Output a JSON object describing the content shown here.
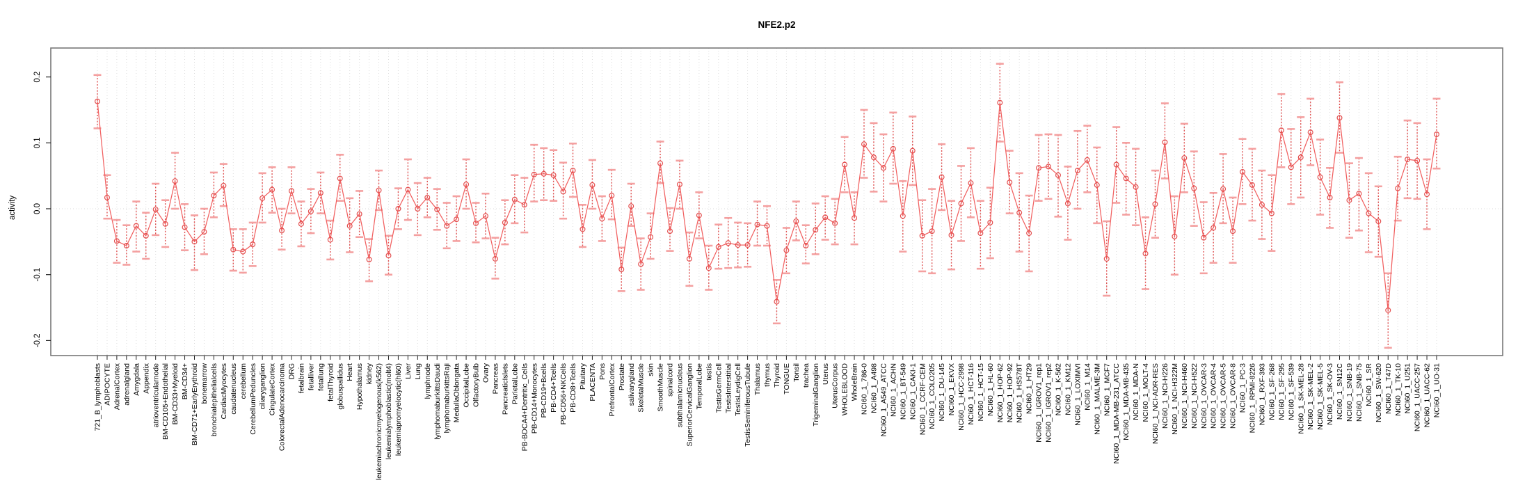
{
  "page": {
    "background": "#ffffff"
  },
  "chart_data": {
    "type": "line",
    "title": "NFE2.p2",
    "ylabel": "activity",
    "xlabel": "",
    "ylim": [
      -0.225,
      0.245
    ],
    "ytick_labels": [
      "0.2",
      "0.1",
      "0.0",
      "-0.1",
      "-0.2"
    ],
    "legend": "none",
    "grid": "vertical dotted gridline per category; dotted horizontal line at y=0",
    "marker": "open-circle",
    "error_bars": true,
    "colors": {
      "series_line": "#f15f5f",
      "point_stroke": "#e34e4e",
      "errorbar_cap": "#f4a0a0",
      "errorbar_stem": "#e05252",
      "gridline": "#dcdcdc",
      "zero_line": "#d8d8d8",
      "box": "#777777",
      "tick": "#222222",
      "text": "#000000"
    },
    "categories": [
      "721_B_lymphoblasts",
      "ADIPOCYTE",
      "AdrenalCortex",
      "adrenalgland",
      "Amygdala",
      "Appendix",
      "atrioventricularnode",
      "BM-CD105+Endothelial",
      "BM-CD33+Myeloid",
      "BM-CD34+",
      "BM-CD71+EarlyErythroid",
      "bonemarrow",
      "bronchialepithelialcells",
      "CardiacMyocytes",
      "caudatenucleus",
      "cerebellum",
      "CerebellumPeduncles",
      "ciliaryganglion",
      "CingulateCortex",
      "ColorectalAdenocarcinoma",
      "DRG",
      "fetalbrain",
      "fetalliver",
      "fetallung",
      "fetalThyroid",
      "globuspallidus",
      "Heart",
      "Hypothalamus",
      "kidney",
      "leukemiachronicmyelogenous(k562)",
      "leukemialymphoblastic(molt4)",
      "leukemiapromyelocytic(hl60)",
      "Liver",
      "Lung",
      "lymphnode",
      "lymphomaburkittsDaudi",
      "lymphomaburkittsRaji",
      "MedullaOblongata",
      "OccipitalLobe",
      "OlfactoryBulb",
      "Ovary",
      "Pancreas",
      "PancreaticIslets",
      "ParietalLobe",
      "PB-BDCA4+Dentritic_Cells",
      "PB-CD14+Monocytes",
      "PB-CD19+Bcells",
      "PB-CD4+Tcells",
      "PB-CD56+NKCells",
      "PB-CD8+Tcells",
      "Pituitary",
      "PLACENTA",
      "Pons",
      "PrefrontalCortex",
      "Prostate",
      "salivarygland",
      "SkeletalMuscle",
      "skin",
      "SmoothMuscle",
      "spinalcord",
      "subthalamicnucleus",
      "SuperiorCervicalGanglion",
      "TemporalLobe",
      "testis",
      "TestisGermCell",
      "TestisInterstitial",
      "TestisLeydigCell",
      "TestisSeminiferousTubule",
      "Thalamus",
      "thymus",
      "Thyroid",
      "TONGUE",
      "Tonsil",
      "trachea",
      "TrigeminalGanglion",
      "Uterus",
      "UterusCorpus",
      "WHOLEBLOOD",
      "WholeBrain",
      "NCI60_1_786-0",
      "NCI60_1_A498",
      "NCI60_1_A549_ATCC",
      "NCI60_1_ACHN",
      "NCI60_1_BT-549",
      "NCI60_1_CAKI-1",
      "NCI60_1_CCRF-CEM",
      "NCI60_1_COLO205",
      "NCI60_1_DU-145",
      "NCI60_1_EKVX",
      "NCI60_1_HCC-2998",
      "NCI60_1_HCT-116",
      "NCI60_1_HCT-15",
      "NCI60_1_HL-60",
      "NCI60_1_HOP-62",
      "NCI60_1_HOP-92",
      "NCI60_1_HS578T",
      "NCI60_1_HT29",
      "NCI60_1_IGROV1_rep1",
      "NCI60_1_IGROV1_rep2",
      "NCI60_1_K-562",
      "NCI60_1_KM12",
      "NCI60_1_LOXIMVI",
      "NCI60_1_M14",
      "NCI60_1_MALME-3M",
      "NCI60_1_MCF7",
      "NCI60_1_MDA-MB-231_ATCC",
      "NCI60_1_MDA-MB-435",
      "NCI60_1_MDA-N",
      "NCI60_1_MOLT-4",
      "NCI60_1_NCI-ADR-RES",
      "NCI60_1_NCI-H226",
      "NCI60_1_NCI-H322M",
      "NCI60_1_NCI-H460",
      "NCI60_1_NCI-H522",
      "NCI60_1_OVCAR-3",
      "NCI60_1_OVCAR-4",
      "NCI60_1_OVCAR-5",
      "NCI60_1_OVCAR-8",
      "NCI60_1_PC-3",
      "NCI60_1_RPMI-8226",
      "NCI60_1_RXF-393",
      "NCI60_1_SF-268",
      "NCI60_1_SF-295",
      "NCI60_1_SF-539",
      "NCI60_1_SK-MEL-28",
      "NCI60_1_SK-MEL-2",
      "NCI60_1_SK-MEL-5",
      "NCI60_1_SK-OV-3",
      "NCI60_1_SN12C",
      "NCI60_1_SNB-19",
      "NCI60_1_SNB-75",
      "NCI60_1_SR",
      "NCI60_1_SW-620",
      "NCI60_1_T47D",
      "NCI60_1_TK-10",
      "NCI60_1_U251",
      "NCI60_1_UACC-257",
      "NCI60_1_UACC-62",
      "NCI60_1_UO-31"
    ],
    "values": [
      0.163,
      0.017,
      -0.049,
      -0.056,
      -0.026,
      -0.041,
      -0.001,
      -0.023,
      0.042,
      -0.028,
      -0.05,
      -0.035,
      0.02,
      0.035,
      -0.062,
      -0.065,
      -0.054,
      0.016,
      0.029,
      -0.033,
      0.027,
      -0.023,
      -0.004,
      0.024,
      -0.047,
      0.046,
      -0.026,
      -0.008,
      -0.077,
      0.028,
      -0.071,
      0.0,
      0.029,
      0.0,
      0.017,
      -0.001,
      -0.026,
      -0.016,
      0.037,
      -0.022,
      -0.011,
      -0.076,
      -0.021,
      0.014,
      0.006,
      0.052,
      0.053,
      0.051,
      0.026,
      0.058,
      -0.031,
      0.036,
      -0.015,
      0.02,
      -0.092,
      0.004,
      -0.084,
      -0.043,
      0.069,
      -0.034,
      0.037,
      -0.076,
      -0.01,
      -0.09,
      -0.058,
      -0.052,
      -0.055,
      -0.055,
      -0.024,
      -0.026,
      -0.141,
      -0.063,
      -0.019,
      -0.056,
      -0.032,
      -0.013,
      -0.022,
      0.067,
      -0.014,
      0.098,
      0.078,
      0.062,
      0.091,
      -0.011,
      0.088,
      -0.041,
      -0.034,
      0.048,
      -0.04,
      0.008,
      0.039,
      -0.037,
      -0.021,
      0.161,
      0.04,
      -0.006,
      -0.037,
      0.062,
      0.064,
      0.051,
      0.008,
      0.058,
      0.074,
      0.036,
      -0.076,
      0.067,
      0.046,
      0.033,
      -0.068,
      0.007,
      0.101,
      -0.042,
      0.077,
      0.031,
      -0.044,
      -0.029,
      0.03,
      -0.034,
      0.056,
      0.036,
      0.006,
      -0.007,
      0.119,
      0.063,
      0.078,
      0.116,
      0.048,
      0.017,
      0.138,
      0.013,
      0.023,
      -0.007,
      -0.019,
      -0.154,
      0.031,
      0.075,
      0.073,
      0.022,
      0.113
    ],
    "err_lo": [
      0.122,
      -0.015,
      -0.082,
      -0.085,
      -0.065,
      -0.076,
      -0.04,
      -0.058,
      0.0,
      -0.063,
      -0.093,
      -0.069,
      -0.013,
      0.004,
      -0.094,
      -0.097,
      -0.087,
      -0.021,
      -0.006,
      -0.062,
      -0.007,
      -0.057,
      -0.037,
      -0.007,
      -0.077,
      0.012,
      -0.066,
      -0.043,
      -0.11,
      -0.002,
      -0.1,
      -0.031,
      -0.017,
      -0.04,
      -0.013,
      -0.032,
      -0.06,
      -0.049,
      0.0,
      -0.051,
      -0.045,
      -0.106,
      -0.054,
      -0.022,
      -0.036,
      0.011,
      0.013,
      0.012,
      -0.015,
      0.018,
      -0.058,
      0.0,
      -0.049,
      -0.016,
      -0.125,
      -0.026,
      -0.123,
      -0.076,
      0.039,
      -0.064,
      0.0,
      -0.117,
      -0.045,
      -0.123,
      -0.091,
      -0.09,
      -0.089,
      -0.088,
      -0.056,
      -0.056,
      -0.174,
      -0.098,
      -0.048,
      -0.083,
      -0.069,
      -0.047,
      -0.054,
      0.025,
      -0.054,
      0.047,
      0.026,
      0.011,
      0.038,
      -0.065,
      0.036,
      -0.095,
      -0.098,
      -0.002,
      -0.092,
      -0.049,
      -0.013,
      -0.091,
      -0.075,
      0.102,
      -0.007,
      -0.065,
      -0.095,
      0.012,
      0.015,
      -0.012,
      -0.047,
      0.0,
      0.025,
      -0.022,
      -0.132,
      0.009,
      -0.009,
      -0.025,
      -0.122,
      -0.044,
      0.046,
      -0.1,
      0.025,
      -0.026,
      -0.098,
      -0.082,
      -0.022,
      -0.082,
      0.007,
      -0.018,
      -0.046,
      -0.064,
      0.063,
      0.007,
      0.017,
      0.066,
      -0.009,
      -0.029,
      0.085,
      -0.044,
      -0.033,
      -0.066,
      -0.073,
      -0.211,
      -0.018,
      0.016,
      0.015,
      -0.031,
      0.061
    ],
    "err_hi": [
      0.203,
      0.051,
      -0.017,
      -0.025,
      0.011,
      -0.006,
      0.038,
      0.013,
      0.085,
      0.007,
      -0.01,
      0.0,
      0.055,
      0.068,
      -0.031,
      -0.031,
      -0.021,
      0.054,
      0.063,
      0.0,
      0.063,
      0.011,
      0.03,
      0.055,
      -0.018,
      0.082,
      0.016,
      0.027,
      -0.046,
      0.058,
      -0.041,
      0.031,
      0.075,
      0.039,
      0.047,
      0.03,
      0.009,
      0.019,
      0.075,
      0.009,
      0.023,
      -0.044,
      0.013,
      0.051,
      0.047,
      0.097,
      0.092,
      0.089,
      0.07,
      0.099,
      0.006,
      0.074,
      0.019,
      0.059,
      -0.059,
      0.038,
      -0.045,
      -0.007,
      0.102,
      0.001,
      0.073,
      -0.036,
      0.025,
      -0.056,
      -0.024,
      -0.014,
      -0.021,
      -0.022,
      0.011,
      0.004,
      -0.108,
      -0.029,
      0.011,
      -0.025,
      0.008,
      0.019,
      0.015,
      0.109,
      0.025,
      0.15,
      0.13,
      0.113,
      0.146,
      0.042,
      0.14,
      0.013,
      0.03,
      0.098,
      0.012,
      0.065,
      0.092,
      0.012,
      0.032,
      0.22,
      0.088,
      0.054,
      0.02,
      0.112,
      0.113,
      0.112,
      0.064,
      0.118,
      0.126,
      0.093,
      -0.019,
      0.124,
      0.1,
      0.091,
      -0.013,
      0.058,
      0.16,
      0.019,
      0.129,
      0.087,
      0.01,
      0.024,
      0.083,
      0.017,
      0.106,
      0.091,
      0.058,
      0.051,
      0.174,
      0.121,
      0.139,
      0.167,
      0.105,
      0.062,
      0.192,
      0.069,
      0.077,
      0.054,
      0.034,
      -0.098,
      0.079,
      0.134,
      0.13,
      0.075,
      0.167
    ]
  }
}
